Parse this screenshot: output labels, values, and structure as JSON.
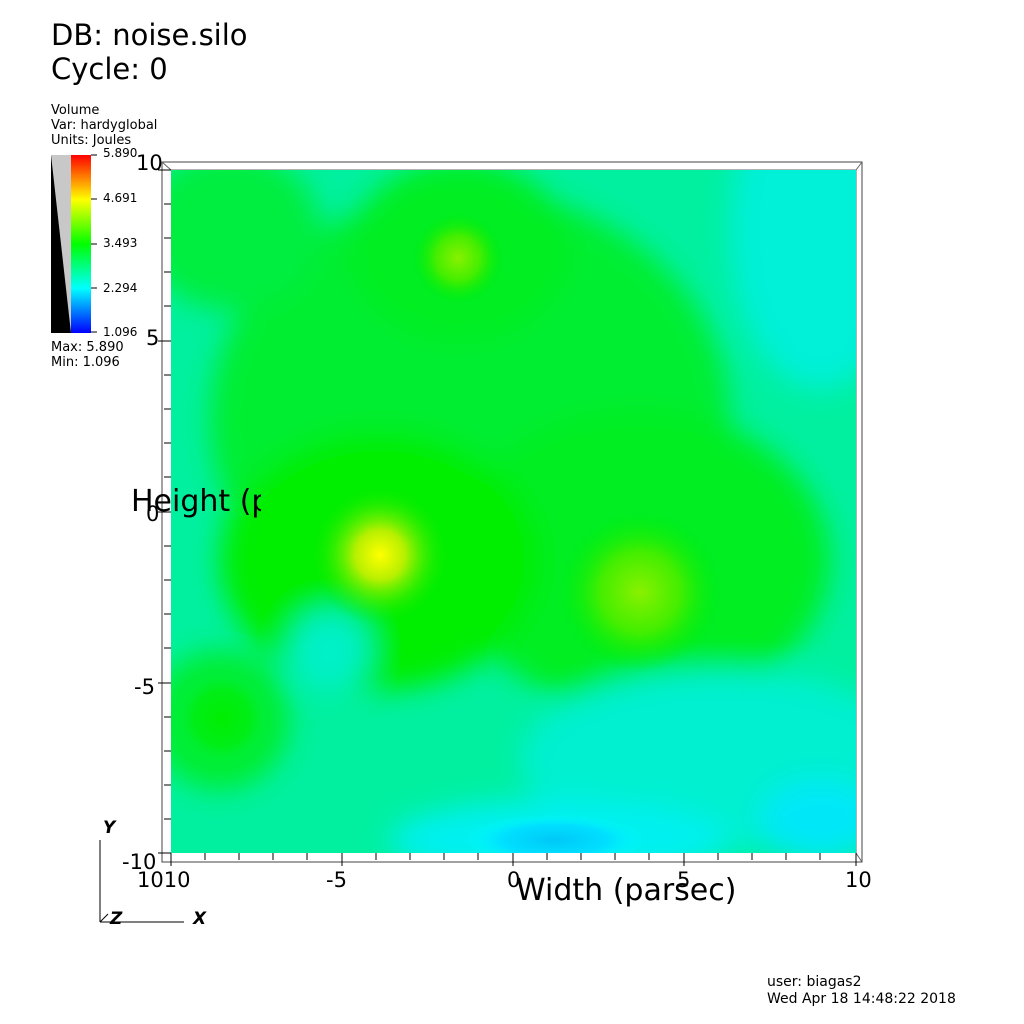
{
  "header": {
    "db": "DB: noise.silo",
    "cycle": "Cycle: 0"
  },
  "legend": {
    "plot_type": "Volume",
    "var": "Var: hardyglobal",
    "units": "Units: Joules",
    "ticks": [
      "5.890",
      "4.691",
      "3.493",
      "2.294",
      "1.096"
    ],
    "max": "Max:  5.890",
    "min": "Min:  1.096",
    "colors": [
      "#ff0000",
      "#ffff00",
      "#00ff00",
      "#00ffff",
      "#0000ff"
    ]
  },
  "plot": {
    "x_axis_title": "Width (parsec)",
    "y_axis_title": "Height (p",
    "x_ticks": [
      "-10",
      "-5",
      "0",
      "5",
      "10"
    ],
    "y_ticks": [
      "10",
      "5",
      "0",
      "-5",
      "-10"
    ],
    "x_tick_values": [
      -10,
      -5,
      0,
      5,
      10
    ],
    "y_tick_values": [
      10,
      5,
      0,
      -5,
      -10
    ],
    "x_range": [
      -10,
      10
    ],
    "y_range": [
      -10,
      10
    ],
    "overlap_x_label": "1010",
    "background": "#00f0b0"
  },
  "triad": {
    "y": "Y",
    "z": "Z",
    "x": "X"
  },
  "footer": {
    "user": "user: biagas2",
    "date": "Wed Apr 18 14:48:22 2018"
  }
}
